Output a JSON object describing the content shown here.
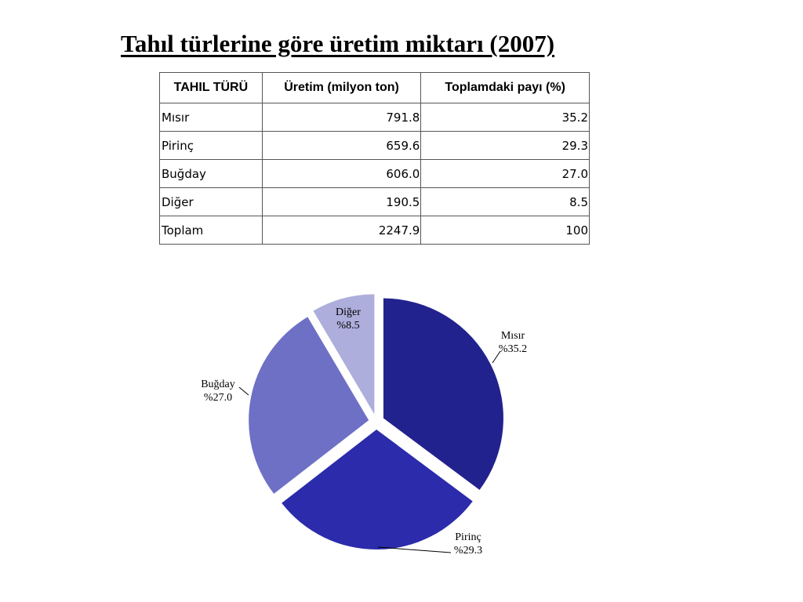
{
  "title": "Tahıl türlerine göre üretim miktarı (2007)",
  "table": {
    "headers": [
      "TAHIL TÜRÜ",
      "Üretim (milyon ton)",
      "Toplamdaki payı (%)"
    ],
    "rows": [
      [
        "Mısır",
        "791.8",
        "35.2"
      ],
      [
        "Pirinç",
        "659.6",
        "29.3"
      ],
      [
        "Buğday",
        "606.0",
        "27.0"
      ],
      [
        "Diğer",
        "190.5",
        "8.5"
      ],
      [
        "Toplam",
        "2247.9",
        "100"
      ]
    ]
  },
  "chart_data": {
    "type": "pie",
    "exploded": true,
    "start": "12 o'clock, clockwise",
    "slices": [
      {
        "label": "Mısır",
        "value": 35.2,
        "value_label": "%35.2",
        "color": "#22228e"
      },
      {
        "label": "Pirinç",
        "value": 29.3,
        "value_label": "%29.3",
        "color": "#2b2bab"
      },
      {
        "label": "Buğday",
        "value": 27.0,
        "value_label": "%27.0",
        "color": "#6e70c6"
      },
      {
        "label": "Diğer",
        "value": 8.5,
        "value_label": "%8.5",
        "color": "#aeaedc"
      }
    ]
  }
}
